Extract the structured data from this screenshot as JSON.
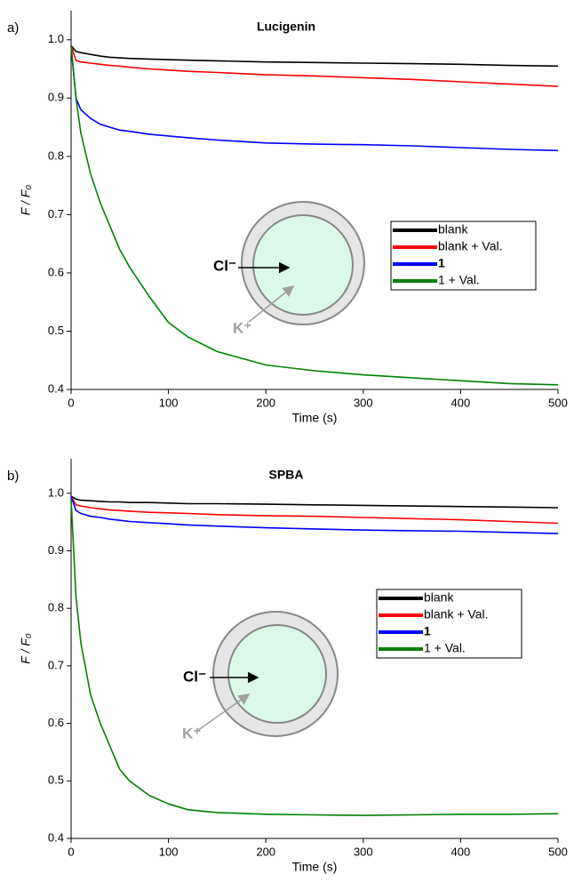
{
  "chart_data": [
    {
      "type": "line",
      "panel_label": "a)",
      "title": "Lucigenin",
      "xlabel": "Time (s)",
      "ylabel": "F / F₀",
      "annotations": [
        "Cl⁻",
        "K⁺"
      ],
      "x": [
        0,
        5,
        10,
        20,
        30,
        40,
        50,
        60,
        80,
        100,
        120,
        150,
        200,
        250,
        300,
        350,
        400,
        450,
        500
      ],
      "series": [
        {
          "name": "blank",
          "color": "#000000",
          "values": [
            0.99,
            0.98,
            0.978,
            0.975,
            0.972,
            0.97,
            0.969,
            0.968,
            0.967,
            0.966,
            0.965,
            0.964,
            0.962,
            0.961,
            0.96,
            0.959,
            0.958,
            0.956,
            0.955
          ]
        },
        {
          "name": "blank + Val.",
          "color": "#ff0000",
          "values": [
            0.99,
            0.965,
            0.962,
            0.96,
            0.958,
            0.956,
            0.955,
            0.953,
            0.95,
            0.948,
            0.946,
            0.944,
            0.94,
            0.938,
            0.935,
            0.932,
            0.928,
            0.924,
            0.92
          ]
        },
        {
          "name": "1",
          "color": "#0000ff",
          "values": [
            0.99,
            0.9,
            0.88,
            0.865,
            0.855,
            0.85,
            0.845,
            0.843,
            0.838,
            0.835,
            0.832,
            0.828,
            0.823,
            0.821,
            0.82,
            0.818,
            0.815,
            0.812,
            0.81
          ]
        },
        {
          "name": "1 + Val.",
          "color": "#008000",
          "values": [
            0.99,
            0.9,
            0.84,
            0.77,
            0.72,
            0.68,
            0.64,
            0.61,
            0.56,
            0.515,
            0.49,
            0.465,
            0.442,
            0.432,
            0.425,
            0.42,
            0.415,
            0.41,
            0.408
          ]
        }
      ],
      "xlim": [
        0,
        500
      ],
      "xticks": [
        0,
        100,
        200,
        300,
        400,
        500
      ],
      "ylim": [
        0.4,
        1.05
      ],
      "yticks": [
        0.4,
        0.5,
        0.6,
        0.7,
        0.8,
        0.9,
        {
          "value": 1,
          "label": "1.0"
        }
      ]
    },
    {
      "type": "line",
      "panel_label": "b)",
      "title": "SPBA",
      "xlabel": "Time (s)",
      "ylabel": "F / F₀",
      "annotations": [
        "Cl⁻",
        "K⁺"
      ],
      "x": [
        0,
        5,
        10,
        20,
        30,
        40,
        50,
        60,
        80,
        100,
        120,
        150,
        200,
        250,
        300,
        350,
        400,
        450,
        500
      ],
      "series": [
        {
          "name": "blank",
          "color": "#000000",
          "values": [
            0.995,
            0.99,
            0.988,
            0.987,
            0.986,
            0.985,
            0.985,
            0.984,
            0.984,
            0.983,
            0.982,
            0.982,
            0.981,
            0.98,
            0.979,
            0.978,
            0.977,
            0.976,
            0.975
          ]
        },
        {
          "name": "blank + Val.",
          "color": "#ff0000",
          "values": [
            0.995,
            0.98,
            0.978,
            0.975,
            0.973,
            0.971,
            0.97,
            0.969,
            0.967,
            0.966,
            0.965,
            0.963,
            0.961,
            0.96,
            0.958,
            0.956,
            0.954,
            0.951,
            0.948
          ]
        },
        {
          "name": "1",
          "color": "#0000ff",
          "values": [
            0.995,
            0.97,
            0.965,
            0.96,
            0.958,
            0.955,
            0.953,
            0.951,
            0.949,
            0.947,
            0.945,
            0.943,
            0.94,
            0.938,
            0.936,
            0.935,
            0.934,
            0.932,
            0.93
          ]
        },
        {
          "name": "1 + Val.",
          "color": "#008000",
          "values": [
            0.99,
            0.82,
            0.74,
            0.65,
            0.6,
            0.56,
            0.52,
            0.5,
            0.475,
            0.46,
            0.45,
            0.445,
            0.442,
            0.441,
            0.44,
            0.441,
            0.442,
            0.442,
            0.443
          ]
        }
      ],
      "xlim": [
        0,
        500
      ],
      "xticks": [
        0,
        100,
        200,
        300,
        400,
        500
      ],
      "ylim": [
        0.4,
        1.06
      ],
      "yticks": [
        0.4,
        0.5,
        0.6,
        0.7,
        0.8,
        0.9,
        {
          "value": 1,
          "label": "1.0"
        }
      ]
    }
  ]
}
